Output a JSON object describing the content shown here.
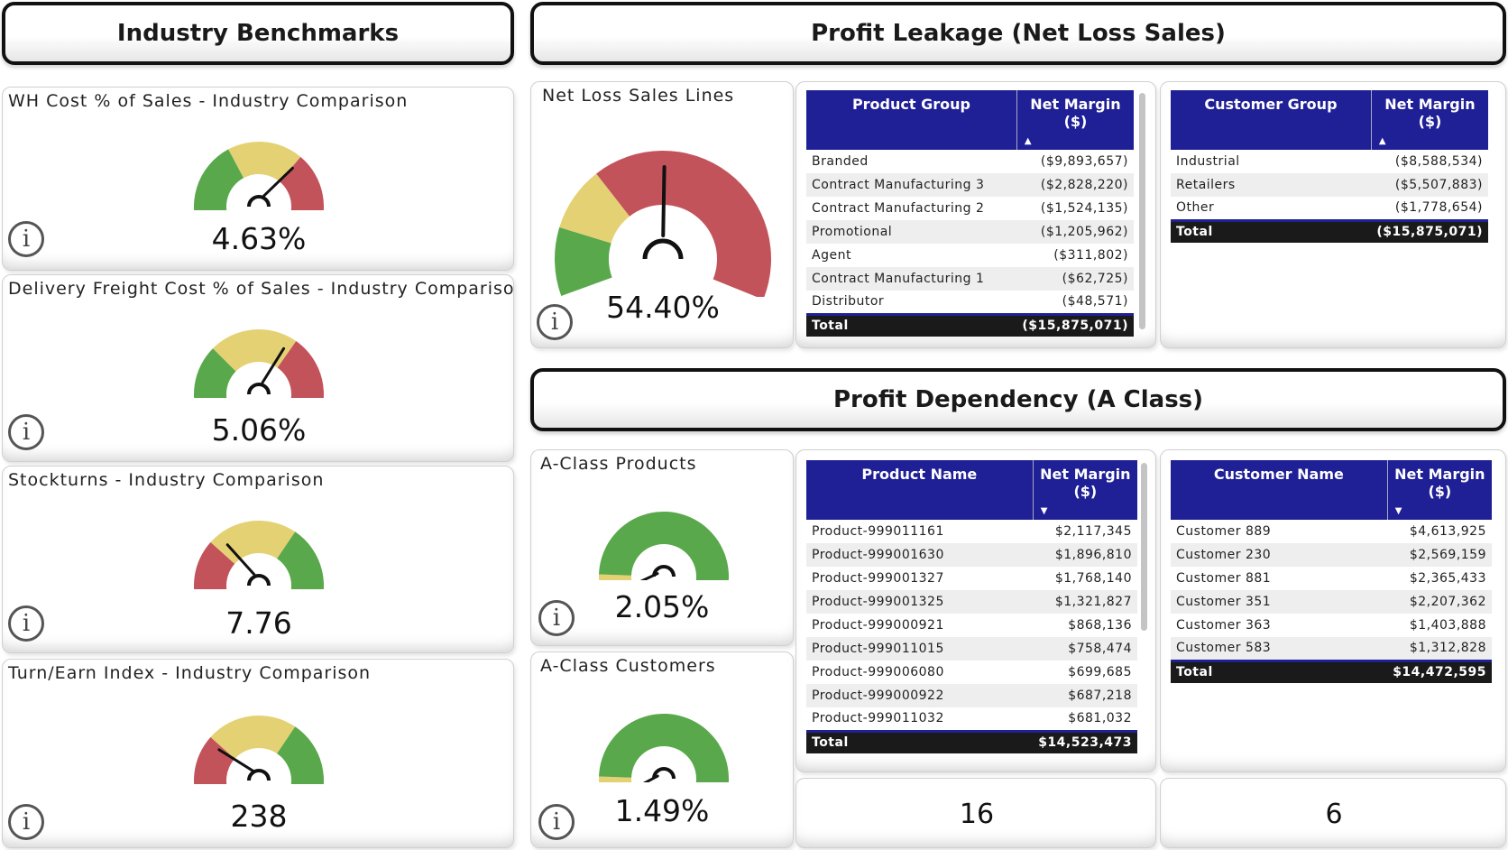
{
  "headers": {
    "benchmarks": "Industry Benchmarks",
    "leakage": "Profit Leakage (Net Loss Sales)",
    "dependency": "Profit Dependency (A Class)"
  },
  "colors": {
    "green": "#59a84b",
    "yellow": "#e4d173",
    "red": "#c3535a",
    "table_header": "#1f1f96"
  },
  "icons": {
    "info": "i"
  },
  "benchmarks": [
    {
      "title": "WH Cost % of Sales - Industry Comparison",
      "value": "4.63%"
    },
    {
      "title": "Delivery Freight Cost % of Sales - Industry Comparison",
      "value": "5.06%"
    },
    {
      "title": "Stockturns - Industry Comparison",
      "value": "7.76"
    },
    {
      "title": "Turn/Earn Index - Industry Comparison",
      "value": "238"
    }
  ],
  "net_loss": {
    "title": "Net Loss Sales Lines",
    "value": "54.40%"
  },
  "product_group_table": {
    "col1": "Product Group",
    "col2": "Net Margin ($)",
    "rows": [
      [
        "Branded",
        "($9,893,657)"
      ],
      [
        "Contract Manufacturing 3",
        "($2,828,220)"
      ],
      [
        "Contract Manufacturing 2",
        "($1,524,135)"
      ],
      [
        "Promotional",
        "($1,205,962)"
      ],
      [
        "Agent",
        "($311,802)"
      ],
      [
        "Contract Manufacturing 1",
        "($62,725)"
      ],
      [
        "Distributor",
        "($48,571)"
      ]
    ],
    "total_label": "Total",
    "total_value": "($15,875,071)"
  },
  "customer_group_table": {
    "col1": "Customer Group",
    "col2": "Net Margin ($)",
    "rows": [
      [
        "Industrial",
        "($8,588,534)"
      ],
      [
        "Retailers",
        "($5,507,883)"
      ],
      [
        "Other",
        "($1,778,654)"
      ]
    ],
    "total_label": "Total",
    "total_value": "($15,875,071)"
  },
  "a_products": {
    "title": "A-Class Products",
    "value": "2.05%"
  },
  "a_customers": {
    "title": "A-Class Customers",
    "value": "1.49%"
  },
  "product_name_table": {
    "col1": "Product Name",
    "col2": "Net Margin ($)",
    "rows": [
      [
        "Product-999011161",
        "$2,117,345"
      ],
      [
        "Product-999001630",
        "$1,896,810"
      ],
      [
        "Product-999001327",
        "$1,768,140"
      ],
      [
        "Product-999001325",
        "$1,321,827"
      ],
      [
        "Product-999000921",
        "$868,136"
      ],
      [
        "Product-999011015",
        "$758,474"
      ],
      [
        "Product-999006080",
        "$699,685"
      ],
      [
        "Product-999000922",
        "$687,218"
      ],
      [
        "Product-999011032",
        "$681,032"
      ]
    ],
    "total_label": "Total",
    "total_value": "$14,523,473"
  },
  "customer_name_table": {
    "col1": "Customer Name",
    "col2": "Net Margin ($)",
    "rows": [
      [
        "Customer 889",
        "$4,613,925"
      ],
      [
        "Customer 230",
        "$2,569,159"
      ],
      [
        "Customer 881",
        "$2,365,433"
      ],
      [
        "Customer 351",
        "$2,207,362"
      ],
      [
        "Customer 363",
        "$1,403,888"
      ],
      [
        "Customer 583",
        "$1,312,828"
      ]
    ],
    "total_label": "Total",
    "total_value": "$14,472,595"
  },
  "counts": {
    "products": "16",
    "customers": "6"
  }
}
